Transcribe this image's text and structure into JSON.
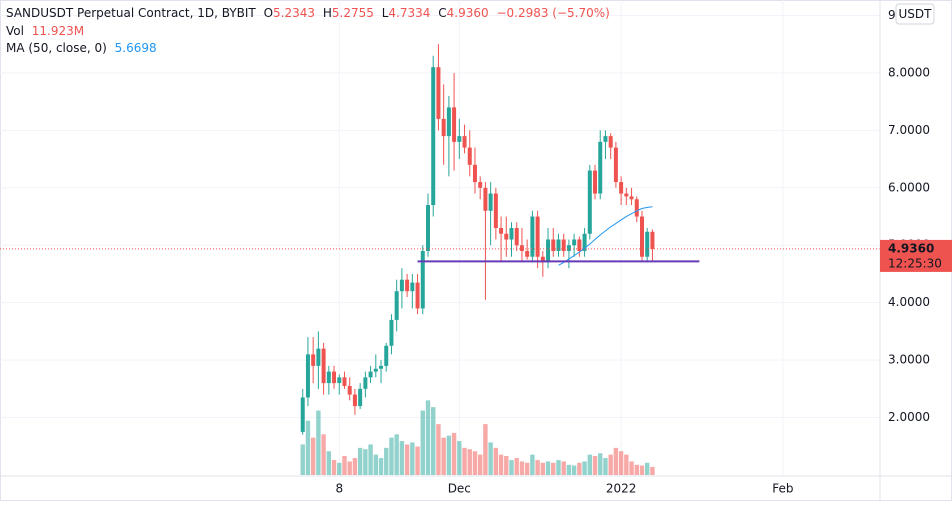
{
  "chart_data": {
    "type": "candlestick",
    "header": {
      "title": "SANDUSDT Perpetual Contract, 1D, BYBIT",
      "o_label": "O",
      "o": "5.2343",
      "h_label": "H",
      "h": "5.2755",
      "l_label": "L",
      "l": "4.7334",
      "c_label": "C",
      "c": "4.9360",
      "change": "−0.2983 (−5.70%)",
      "vol_label": "Vol",
      "vol": "11.923M",
      "ma_label": "MA (50, close, 0)",
      "ma": "5.6698"
    },
    "currency_button": "USDT",
    "up_color": "#26a69a",
    "down_color": "#ef5350",
    "open": [
      1.75,
      2.35,
      3.1,
      2.9,
      3.2,
      2.6,
      2.8,
      2.6,
      2.7,
      2.55,
      2.4,
      2.2,
      2.5,
      2.7,
      2.8,
      2.85,
      2.9,
      3.25,
      3.7,
      4.2,
      4.4,
      4.2,
      4.35,
      3.9,
      4.9,
      5.7,
      8.1,
      7.2,
      6.9,
      7.4,
      6.8,
      6.9,
      6.7,
      6.4,
      6.1,
      6.0,
      5.6,
      5.9,
      5.3,
      5.2,
      5.1,
      5.3,
      5.0,
      4.9,
      4.8,
      5.5,
      4.8,
      4.7,
      5.1,
      4.9,
      5.1,
      4.9,
      5.0,
      5.1,
      4.9,
      5.2,
      6.3,
      5.9,
      6.8,
      6.9,
      6.7,
      6.1,
      5.9,
      5.85,
      5.8,
      5.5,
      4.8,
      5.2343
    ],
    "high": [
      2.5,
      3.4,
      3.4,
      3.5,
      3.3,
      2.9,
      2.9,
      2.75,
      2.8,
      2.7,
      2.5,
      2.6,
      2.8,
      2.9,
      3.1,
      3.0,
      3.3,
      3.8,
      4.4,
      4.6,
      4.5,
      4.5,
      4.5,
      5.0,
      5.9,
      8.3,
      8.5,
      7.8,
      7.6,
      8.0,
      7.2,
      7.1,
      7.0,
      6.7,
      6.2,
      6.1,
      6.1,
      6.0,
      5.5,
      5.5,
      5.4,
      5.4,
      5.3,
      5.1,
      5.6,
      5.6,
      4.9,
      5.3,
      5.3,
      5.2,
      5.2,
      5.1,
      5.2,
      5.15,
      5.3,
      6.4,
      6.4,
      7.0,
      7.0,
      6.95,
      6.8,
      6.2,
      6.0,
      6.0,
      5.85,
      5.6,
      5.3,
      5.2755
    ],
    "low": [
      1.7,
      2.2,
      2.6,
      2.5,
      2.4,
      2.4,
      2.5,
      2.4,
      2.5,
      2.3,
      2.05,
      2.15,
      2.35,
      2.6,
      2.7,
      2.6,
      2.8,
      3.1,
      3.5,
      3.9,
      4.1,
      3.9,
      3.8,
      3.8,
      4.8,
      5.5,
      7.0,
      6.4,
      6.2,
      6.3,
      6.5,
      6.6,
      6.2,
      5.9,
      5.8,
      4.05,
      5.0,
      5.1,
      4.7,
      4.8,
      4.8,
      4.9,
      4.7,
      4.75,
      4.7,
      4.6,
      4.45,
      4.6,
      4.8,
      4.8,
      4.8,
      4.6,
      4.8,
      4.8,
      4.8,
      5.1,
      5.8,
      5.8,
      6.5,
      6.5,
      6.0,
      5.7,
      5.7,
      5.7,
      5.4,
      4.7,
      4.7,
      4.7334
    ],
    "close": [
      2.35,
      3.1,
      2.9,
      3.2,
      2.6,
      2.8,
      2.6,
      2.7,
      2.55,
      2.4,
      2.2,
      2.5,
      2.7,
      2.8,
      2.85,
      2.9,
      3.25,
      3.7,
      4.2,
      4.4,
      4.2,
      4.35,
      3.9,
      4.9,
      5.7,
      8.1,
      7.2,
      6.9,
      7.4,
      6.8,
      6.9,
      6.7,
      6.4,
      6.1,
      6.0,
      5.6,
      5.9,
      5.3,
      5.2,
      5.1,
      5.3,
      5.0,
      4.9,
      4.8,
      5.5,
      4.8,
      4.7,
      5.1,
      4.9,
      5.1,
      4.9,
      5.0,
      5.1,
      4.9,
      5.2,
      6.3,
      5.9,
      6.8,
      6.9,
      6.7,
      6.1,
      5.9,
      5.85,
      5.8,
      5.5,
      4.8,
      5.2343,
      4.936
    ],
    "volume": [
      45,
      80,
      55,
      95,
      60,
      35,
      22,
      18,
      28,
      20,
      25,
      40,
      38,
      45,
      30,
      25,
      40,
      55,
      60,
      50,
      45,
      48,
      42,
      95,
      110,
      100,
      75,
      55,
      58,
      62,
      50,
      40,
      38,
      35,
      30,
      75,
      48,
      40,
      30,
      28,
      22,
      25,
      20,
      18,
      30,
      22,
      18,
      20,
      18,
      22,
      20,
      15,
      14,
      18,
      20,
      30,
      28,
      32,
      25,
      30,
      40,
      35,
      30,
      20,
      15,
      14,
      18,
      11.923
    ],
    "volume_ylim": [
      0,
      140
    ],
    "ma_color": "#2196f3",
    "ma": [
      null,
      null,
      null,
      null,
      null,
      null,
      null,
      null,
      null,
      null,
      null,
      null,
      null,
      null,
      null,
      null,
      null,
      null,
      null,
      null,
      null,
      null,
      null,
      null,
      null,
      null,
      null,
      null,
      null,
      null,
      null,
      null,
      null,
      null,
      null,
      null,
      null,
      null,
      null,
      null,
      null,
      null,
      null,
      null,
      null,
      null,
      null,
      null,
      null,
      4.65,
      4.7,
      4.76,
      4.82,
      4.88,
      4.95,
      5.02,
      5.1,
      5.18,
      5.25,
      5.32,
      5.38,
      5.44,
      5.5,
      5.55,
      5.6,
      5.64,
      5.66,
      5.6698
    ],
    "support_line": {
      "value": 4.72,
      "from": 22,
      "to": 76,
      "color": "#673ab7"
    },
    "last_price": {
      "value": 4.936,
      "label": "4.9360"
    },
    "countdown": "12:25:30",
    "xlim": [
      -58,
      110.6
    ],
    "xticks": [
      {
        "value": 7,
        "label": "8"
      },
      {
        "value": 30,
        "label": "Dec"
      },
      {
        "value": 61,
        "label": "2022"
      },
      {
        "value": 92,
        "label": "Feb"
      }
    ],
    "ylim": [
      1.0,
      9.2
    ],
    "yticks": [
      {
        "value": 2,
        "label": "2.0000"
      },
      {
        "value": 3,
        "label": "3.0000"
      },
      {
        "value": 4,
        "label": "4.0000"
      },
      {
        "value": 5,
        "label": "5.0000"
      },
      {
        "value": 6,
        "label": "6.0000"
      },
      {
        "value": 7,
        "label": "7.0000"
      },
      {
        "value": 8,
        "label": "8.0000"
      },
      9
    ],
    "grid": true
  }
}
